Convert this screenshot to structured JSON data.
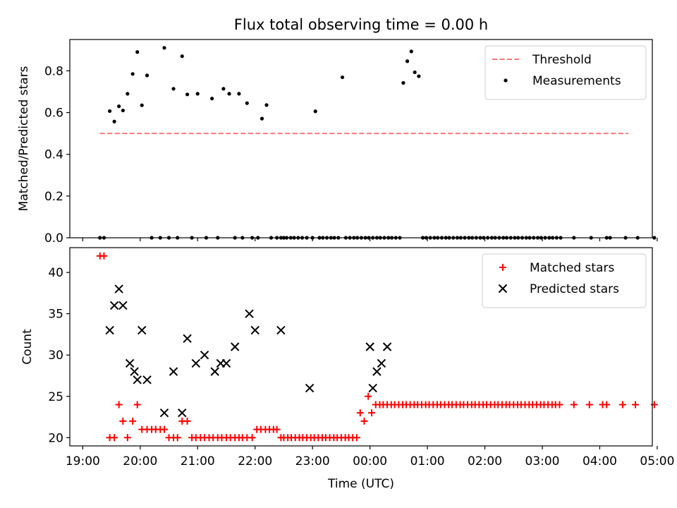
{
  "chart_data": [
    {
      "type": "scatter",
      "title": "Flux total observing time = 0.00 h",
      "xlabel": "",
      "ylabel": "Matched/Predicted stars",
      "xlim": [
        -0.225,
        9.915
      ],
      "ylim": [
        0,
        0.95
      ],
      "yticks": [
        0.0,
        0.2,
        0.4,
        0.6,
        0.8
      ],
      "ytick_labels": [
        "0.0",
        "0.2",
        "0.4",
        "0.6",
        "0.8"
      ],
      "legend_position": "top-right",
      "threshold": {
        "name": "Threshold",
        "value": 0.5,
        "x_range": [
          0.3,
          9.5
        ],
        "color": "#ff7777"
      },
      "series": [
        {
          "name": "Measurements",
          "color": "#000000",
          "x": [
            0.3,
            0.37,
            0.47,
            0.55,
            0.63,
            0.7,
            0.78,
            0.87,
            0.95,
            1.03,
            1.12,
            1.2,
            1.35,
            1.42,
            1.5,
            1.58,
            1.65,
            1.73,
            1.82,
            1.9,
            2.0,
            2.15,
            2.25,
            2.35,
            2.45,
            2.55,
            2.65,
            2.72,
            2.78,
            2.86,
            2.95,
            3.05,
            3.12,
            3.2,
            3.28,
            3.38,
            3.45,
            3.5,
            3.55,
            3.62,
            3.68,
            3.75,
            3.82,
            3.9,
            4.0,
            4.05,
            4.12,
            4.18,
            4.25,
            4.32,
            4.38,
            4.45,
            4.52,
            4.58,
            4.65,
            4.72,
            4.78,
            4.85,
            4.92,
            4.98,
            5.05,
            5.12,
            5.18,
            5.25,
            5.32,
            5.38,
            5.45,
            5.52,
            5.58,
            5.65,
            5.72,
            5.78,
            5.85,
            5.92,
            5.98,
            6.05,
            6.12,
            6.18,
            6.25,
            6.32,
            6.38,
            6.45,
            6.52,
            6.58,
            6.65,
            6.72,
            6.78,
            6.85,
            6.92,
            6.98,
            7.05,
            7.12,
            7.18,
            7.25,
            7.32,
            7.38,
            7.45,
            7.52,
            7.58,
            7.65,
            7.72,
            7.78,
            7.85,
            7.92,
            7.98,
            8.05,
            8.12,
            8.18,
            8.25,
            8.32,
            8.55,
            8.85,
            9.12,
            9.18,
            9.45,
            9.66,
            9.95
          ],
          "y": [
            0.0,
            0.0,
            0.607,
            0.557,
            0.63,
            0.61,
            0.69,
            0.785,
            0.89,
            0.635,
            0.778,
            0.0,
            0.0,
            0.91,
            0.0,
            0.714,
            0.0,
            0.87,
            0.687,
            0.0,
            0.69,
            0.0,
            0.667,
            0.0,
            0.714,
            0.69,
            0.0,
            0.69,
            0.0,
            0.645,
            0.0,
            0.0,
            0.571,
            0.636,
            0.0,
            0.0,
            0.0,
            0.0,
            0.0,
            0.0,
            0.0,
            0.0,
            0.0,
            0.0,
            0.0,
            0.606,
            0.0,
            0.0,
            0.0,
            0.0,
            0.0,
            0.0,
            0.769,
            0.0,
            0.0,
            0.0,
            0.0,
            0.0,
            0.0,
            0.0,
            0.0,
            0.0,
            0.0,
            0.0,
            0.0,
            0.0,
            0.0,
            0.0,
            0.742,
            0.846,
            0.893,
            0.793,
            0.774,
            0.0,
            0.0,
            0.0,
            0.0,
            0.0,
            0.0,
            0.0,
            0.0,
            0.0,
            0.0,
            0.0,
            0.0,
            0.0,
            0.0,
            0.0,
            0.0,
            0.0,
            0.0,
            0.0,
            0.0,
            0.0,
            0.0,
            0.0,
            0.0,
            0.0,
            0.0,
            0.0,
            0.0,
            0.0,
            0.0,
            0.0,
            0.0,
            0.0,
            0.0,
            0.0,
            0.0,
            0.0,
            0.0,
            0.0,
            0.0,
            0.0,
            0.0,
            0.0,
            0.0
          ]
        }
      ]
    },
    {
      "type": "scatter",
      "title": "",
      "xlabel": "Time (UTC)",
      "ylabel": "Count",
      "xlim": [
        -0.225,
        9.915
      ],
      "ylim": [
        19.0,
        43.0
      ],
      "yticks": [
        20,
        25,
        30,
        35,
        40
      ],
      "ytick_labels": [
        "20",
        "25",
        "30",
        "35",
        "40"
      ],
      "xticks": [
        0,
        1,
        2,
        3,
        4,
        5,
        6,
        7,
        8,
        9,
        10
      ],
      "xtick_labels": [
        "19:00",
        "20:00",
        "21:00",
        "22:00",
        "23:00",
        "00:00",
        "01:00",
        "02:00",
        "03:00",
        "04:00",
        "05:00"
      ],
      "legend_position": "top-right",
      "series": [
        {
          "name": "Matched stars",
          "marker": "plus",
          "color": "#ff0000",
          "x": [
            0.3,
            0.37,
            0.47,
            0.55,
            0.63,
            0.7,
            0.78,
            0.87,
            0.95,
            1.03,
            1.12,
            1.2,
            1.27,
            1.35,
            1.42,
            1.5,
            1.58,
            1.65,
            1.73,
            1.82,
            1.9,
            1.97,
            2.05,
            2.12,
            2.2,
            2.27,
            2.35,
            2.42,
            2.5,
            2.57,
            2.65,
            2.72,
            2.78,
            2.86,
            2.95,
            3.03,
            3.1,
            3.18,
            3.25,
            3.32,
            3.38,
            3.45,
            3.5,
            3.57,
            3.63,
            3.7,
            3.77,
            3.83,
            3.9,
            3.97,
            4.03,
            4.1,
            4.17,
            4.23,
            4.3,
            4.37,
            4.43,
            4.5,
            4.57,
            4.63,
            4.7,
            4.77,
            4.83,
            4.9,
            4.97,
            5.03,
            5.1,
            5.17,
            5.23,
            5.3,
            5.37,
            5.43,
            5.5,
            5.57,
            5.63,
            5.7,
            5.77,
            5.83,
            5.9,
            5.97,
            6.03,
            6.1,
            6.17,
            6.23,
            6.3,
            6.37,
            6.43,
            6.5,
            6.57,
            6.63,
            6.7,
            6.77,
            6.83,
            6.9,
            6.97,
            7.03,
            7.1,
            7.17,
            7.23,
            7.3,
            7.37,
            7.43,
            7.5,
            7.57,
            7.63,
            7.7,
            7.77,
            7.83,
            7.9,
            7.97,
            8.03,
            8.1,
            8.17,
            8.23,
            8.3,
            8.55,
            8.82,
            9.05,
            9.12,
            9.4,
            9.62,
            9.95
          ],
          "y": [
            42,
            42,
            20,
            20,
            24,
            22,
            20,
            22,
            24,
            21,
            21,
            21,
            21,
            21,
            21,
            20,
            20,
            20,
            22,
            22,
            20,
            20,
            20,
            20,
            20,
            20,
            20,
            20,
            20,
            20,
            20,
            20,
            20,
            20,
            20,
            21,
            21,
            21,
            21,
            21,
            21,
            20,
            20,
            20,
            20,
            20,
            20,
            20,
            20,
            20,
            20,
            20,
            20,
            20,
            20,
            20,
            20,
            20,
            20,
            20,
            20,
            20,
            23,
            22,
            25,
            23,
            24,
            24,
            24,
            24,
            24,
            24,
            24,
            24,
            24,
            24,
            24,
            24,
            24,
            24,
            24,
            24,
            24,
            24,
            24,
            24,
            24,
            24,
            24,
            24,
            24,
            24,
            24,
            24,
            24,
            24,
            24,
            24,
            24,
            24,
            24,
            24,
            24,
            24,
            24,
            24,
            24,
            24,
            24,
            24,
            24,
            24,
            24,
            24,
            24,
            24,
            24,
            24,
            24,
            24,
            24,
            24
          ]
        },
        {
          "name": "Predicted stars",
          "marker": "x",
          "color": "#000000",
          "x": [
            0.47,
            0.55,
            0.63,
            0.7,
            0.82,
            0.9,
            0.95,
            1.03,
            1.12,
            1.42,
            1.58,
            1.73,
            1.82,
            1.97,
            2.12,
            2.3,
            2.4,
            2.5,
            2.65,
            2.9,
            3.0,
            3.45,
            3.95,
            5.0,
            5.05,
            5.12,
            5.2,
            5.3
          ],
          "y": [
            33,
            36,
            38,
            36,
            29,
            28,
            27,
            33,
            27,
            23,
            28,
            23,
            32,
            29,
            30,
            28,
            29,
            29,
            31,
            35,
            33,
            33,
            26,
            31,
            26,
            28,
            29,
            31
          ]
        }
      ]
    }
  ]
}
